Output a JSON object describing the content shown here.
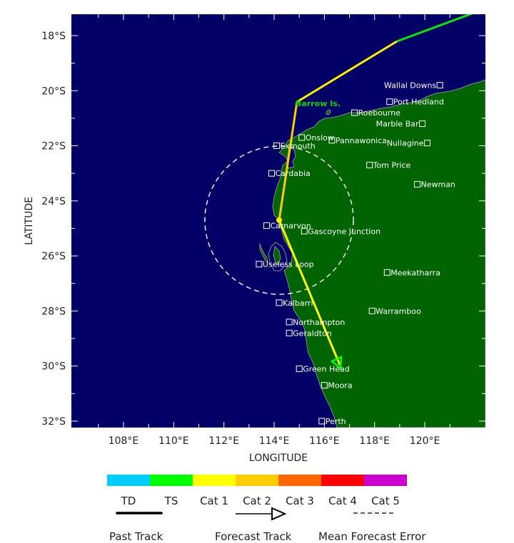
{
  "chart_data": {
    "type": "map",
    "title": "",
    "xlabel": "LONGITUDE",
    "ylabel": "LATITUDE",
    "xlim": [
      106.2,
      121.3
    ],
    "ylim": [
      -32.2,
      -17.2
    ],
    "x_ticks": [
      "108°E",
      "110°E",
      "112°E",
      "114°E",
      "116°E",
      "118°E",
      "120°E"
    ],
    "y_ticks": [
      "18°S",
      "20°S",
      "22°S",
      "24°S",
      "26°S",
      "28°S",
      "30°S",
      "32°S"
    ],
    "colors": {
      "ocean": "#000066",
      "land": "#006400",
      "coast": "#888888"
    },
    "track": {
      "points": [
        {
          "lon": 121.0,
          "lat": -17.2,
          "category": "TS"
        },
        {
          "lon": 117.9,
          "lat": -18.2,
          "category": "Cat 1"
        },
        {
          "lon": 114.2,
          "lat": -20.4,
          "category": "Cat 2"
        },
        {
          "lon": 113.6,
          "lat": -24.7,
          "category": "Cat 1"
        },
        {
          "lon": 115.8,
          "lat": -30.0,
          "category": "TS"
        }
      ],
      "current_position": {
        "lon": 113.6,
        "lat": -24.7
      },
      "forecast_end_marker": {
        "lon": 115.8,
        "lat": -29.9,
        "symbol": "triangle",
        "color": "#00ff00"
      }
    },
    "mean_forecast_error_circle": {
      "center_lon": 113.6,
      "center_lat": -24.7,
      "radius_deg": 2.7
    },
    "special_label": {
      "text": "Barrow Is.",
      "lon": 114.3,
      "lat": -20.5,
      "color": "#00dd00"
    },
    "cities": [
      {
        "name": "Wallal Downs",
        "lon": 120.6,
        "lat": -19.8,
        "label_side": "left"
      },
      {
        "name": "Port Hedland",
        "lon": 118.6,
        "lat": -20.4,
        "label_side": "right"
      },
      {
        "name": "Roebourne",
        "lon": 117.2,
        "lat": -20.8,
        "label_side": "right"
      },
      {
        "name": "Marble Bar",
        "lon": 119.9,
        "lat": -21.2,
        "label_side": "left"
      },
      {
        "name": "Onslow",
        "lon": 115.1,
        "lat": -21.7,
        "label_side": "right"
      },
      {
        "name": "Pannawonica",
        "lon": 116.3,
        "lat": -21.8,
        "label_side": "right"
      },
      {
        "name": "Nullagine",
        "lon": 120.1,
        "lat": -21.9,
        "label_side": "left"
      },
      {
        "name": "Exmouth",
        "lon": 114.1,
        "lat": -22.0,
        "label_side": "right"
      },
      {
        "name": "Cardabia",
        "lon": 113.9,
        "lat": -23.0,
        "label_side": "right"
      },
      {
        "name": "Tom Price",
        "lon": 117.8,
        "lat": -22.7,
        "label_side": "right"
      },
      {
        "name": "Newman",
        "lon": 119.7,
        "lat": -23.4,
        "label_side": "right"
      },
      {
        "name": "Carnarvon",
        "lon": 113.7,
        "lat": -24.9,
        "label_side": "right"
      },
      {
        "name": "Gascoyne Junction",
        "lon": 115.2,
        "lat": -25.1,
        "label_side": "right"
      },
      {
        "name": "Useless Loop",
        "lon": 113.4,
        "lat": -26.3,
        "label_side": "right"
      },
      {
        "name": "Meekatharra",
        "lon": 118.5,
        "lat": -26.6,
        "label_side": "right"
      },
      {
        "name": "Kalbarri",
        "lon": 114.2,
        "lat": -27.7,
        "label_side": "right"
      },
      {
        "name": "Warramboo",
        "lon": 117.9,
        "lat": -28.0,
        "label_side": "right"
      },
      {
        "name": "Northampton",
        "lon": 114.6,
        "lat": -28.4,
        "label_side": "right"
      },
      {
        "name": "Geraldton",
        "lon": 114.6,
        "lat": -28.8,
        "label_side": "right"
      },
      {
        "name": "Green Head",
        "lon": 115.0,
        "lat": -30.1,
        "label_side": "right"
      },
      {
        "name": "Moora",
        "lon": 116.0,
        "lat": -30.7,
        "label_side": "right"
      },
      {
        "name": "Perth",
        "lon": 115.9,
        "lat": -32.0,
        "label_side": "right"
      }
    ]
  },
  "axes": {
    "xlabel": "LONGITUDE",
    "ylabel": "LATITUDE",
    "x_ticks": [
      "108°E",
      "110°E",
      "112°E",
      "114°E",
      "116°E",
      "118°E",
      "120°E"
    ],
    "y_ticks": [
      "18°S",
      "20°S",
      "22°S",
      "24°S",
      "26°S",
      "28°S",
      "30°S",
      "32°S"
    ]
  },
  "legend": {
    "categories": [
      {
        "label": "TD",
        "color": "#00ccff"
      },
      {
        "label": "TS",
        "color": "#00ff00"
      },
      {
        "label": "Cat 1",
        "color": "#ffff00"
      },
      {
        "label": "Cat 2",
        "color": "#ffcc00"
      },
      {
        "label": "Cat 3",
        "color": "#ff6600"
      },
      {
        "label": "Cat 4",
        "color": "#ff0000"
      },
      {
        "label": "Cat 5",
        "color": "#cc00cc"
      }
    ],
    "past_track_label": "Past Track",
    "forecast_track_label": "Forecast Track",
    "mean_error_label": "Mean Forecast Error"
  }
}
